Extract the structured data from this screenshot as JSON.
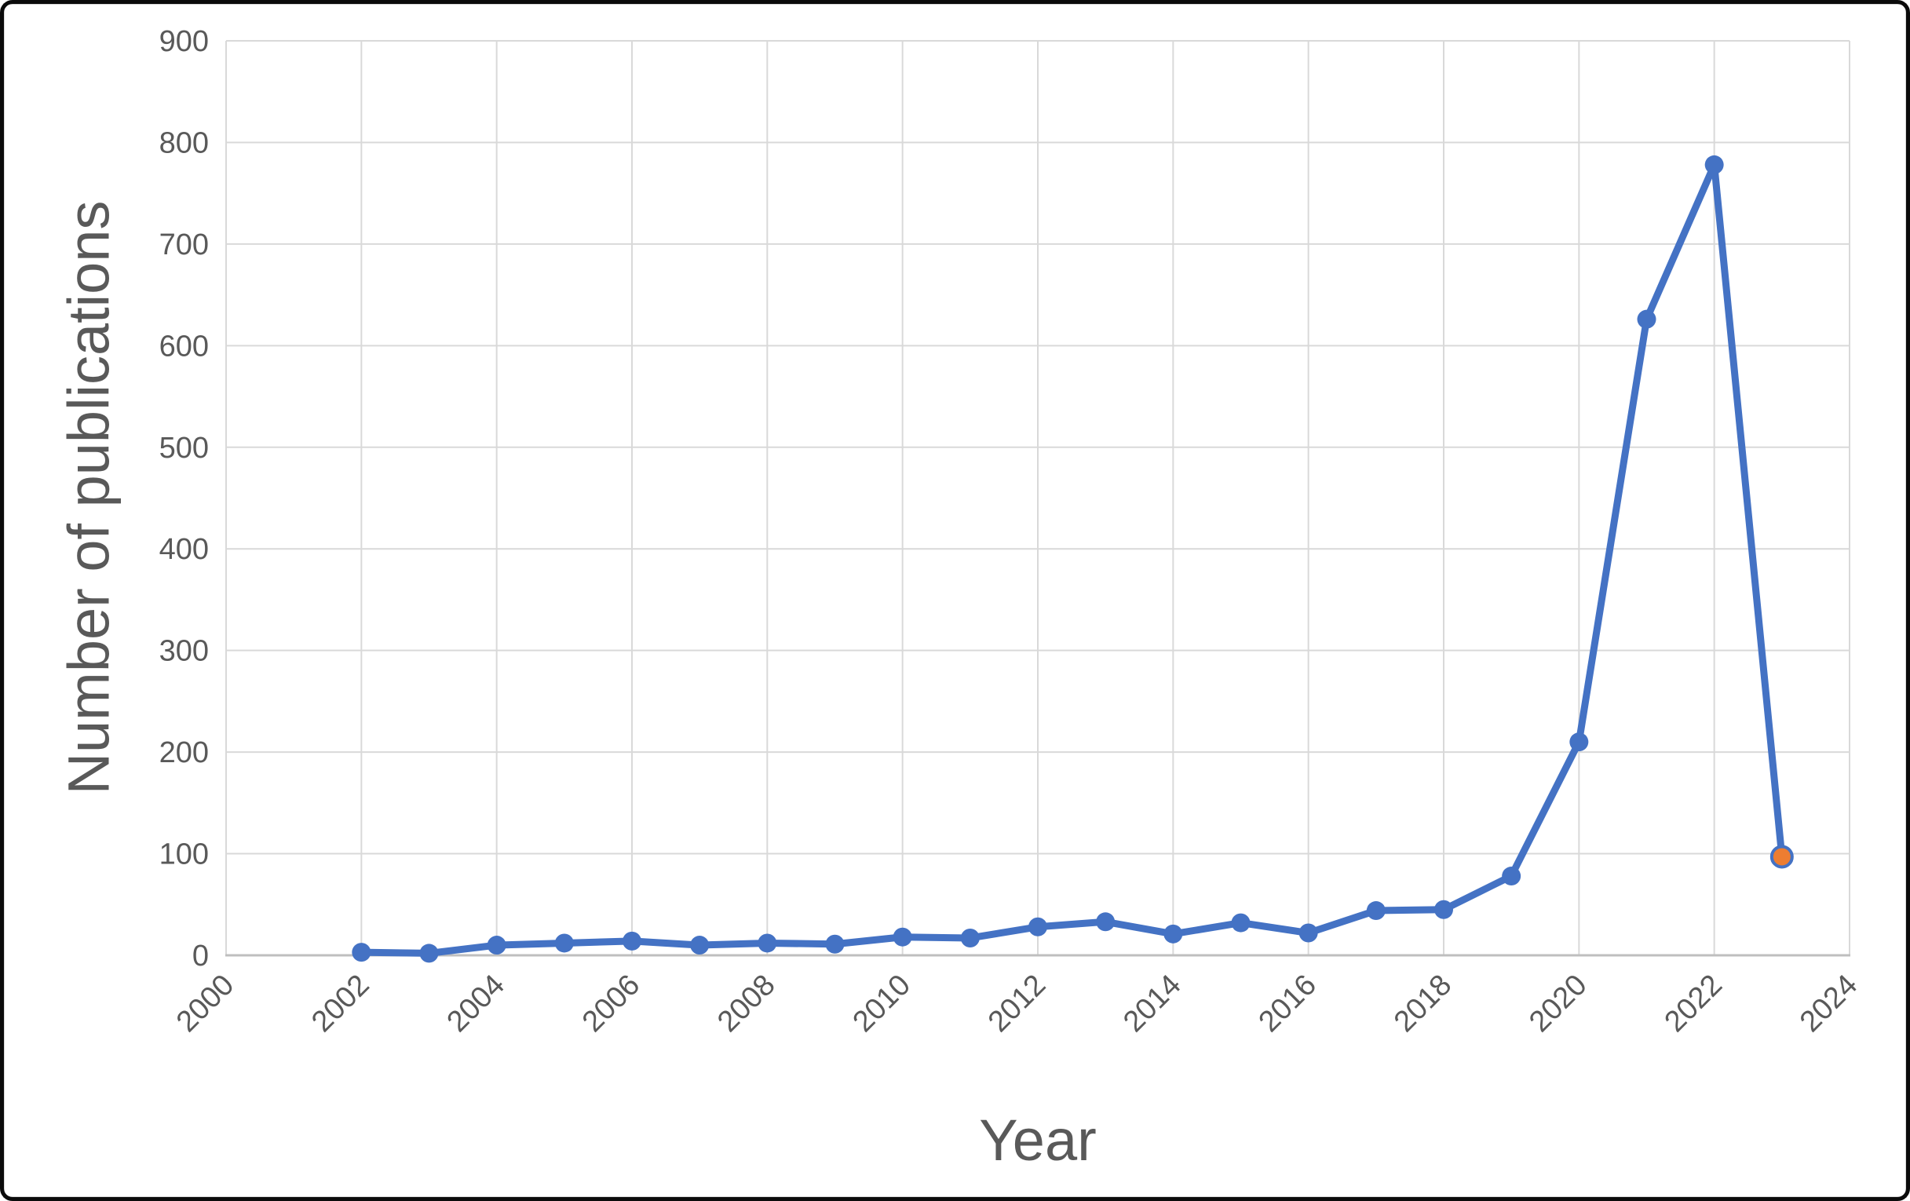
{
  "frame": {
    "outer_border_color": "#0b0b0b",
    "inner_border_color": "#d9d9d9",
    "background_color": "#ffffff"
  },
  "chart_data": {
    "type": "line",
    "title": "",
    "xlabel": "Year",
    "ylabel": "Number of publications",
    "x": [
      2002,
      2003,
      2004,
      2005,
      2006,
      2007,
      2008,
      2009,
      2010,
      2011,
      2012,
      2013,
      2014,
      2015,
      2016,
      2017,
      2018,
      2019,
      2020,
      2021,
      2022,
      2023
    ],
    "series": [
      {
        "name": "Number of publications",
        "values": [
          3,
          2,
          10,
          12,
          14,
          10,
          12,
          11,
          18,
          17,
          28,
          33,
          21,
          32,
          22,
          44,
          45,
          78,
          210,
          626,
          778,
          97
        ]
      }
    ],
    "highlight_last_point": true,
    "xlim": [
      2000,
      2024
    ],
    "ylim": [
      0,
      900
    ],
    "x_ticks": [
      2000,
      2002,
      2004,
      2006,
      2008,
      2010,
      2012,
      2014,
      2016,
      2018,
      2020,
      2022,
      2024
    ],
    "y_ticks": [
      0,
      100,
      200,
      300,
      400,
      500,
      600,
      700,
      800,
      900
    ],
    "grid": true,
    "legend": "none",
    "colors": {
      "line": "#4472C4",
      "marker": "#4472C4",
      "highlight_marker_fill": "#ED7D31",
      "highlight_marker_stroke": "#4472C4",
      "gridline": "#d9d9d9",
      "axis_line": "#bfbfbf",
      "tick_label": "#595959",
      "axis_title": "#595959"
    }
  }
}
